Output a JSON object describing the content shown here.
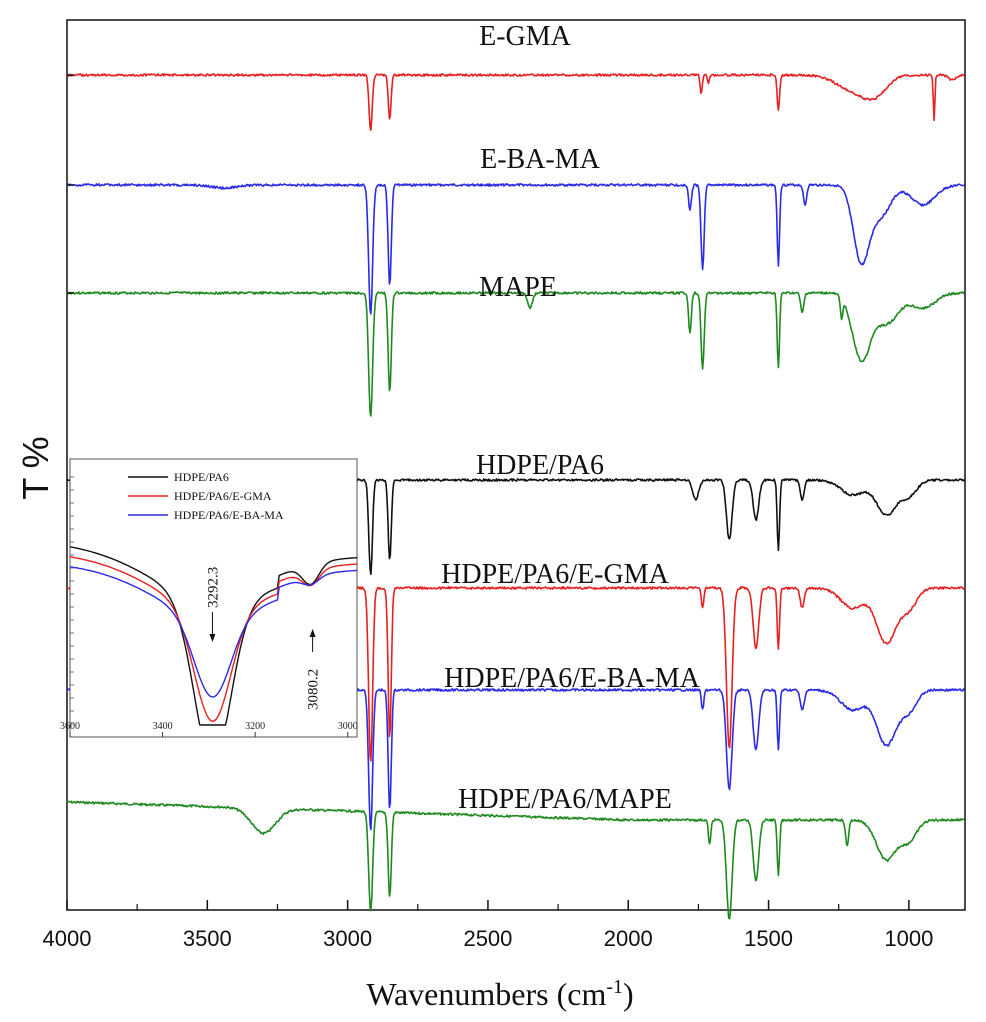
{
  "chart_data": [
    {
      "type": "line",
      "xlabel": "Wavenumbers (cm",
      "xlabel_sup": "-1",
      "xlabel_close": ")",
      "ylabel": "T %",
      "xlim": [
        4000,
        800
      ],
      "x_reversed": true,
      "xticks": [
        4000,
        3500,
        3000,
        2500,
        2000,
        1500,
        1000
      ],
      "y_tick_labels_shown": false,
      "grid": false,
      "series": [
        {
          "name": "E-GMA",
          "color": "#e82020",
          "peaks": [
            2918,
            2850,
            1740,
            1715,
            1465,
            1160,
            1100,
            910,
            845
          ]
        },
        {
          "name": "E-BA-MA",
          "color": "#2a2ae8",
          "peaks": [
            2918,
            2850,
            1780,
            1735,
            1465,
            1170,
            950
          ]
        },
        {
          "name": "MAPE",
          "color": "#1e8a1e",
          "peaks": [
            2918,
            2850,
            2350,
            1780,
            1735,
            1465,
            1380,
            1240,
            1170
          ]
        },
        {
          "name": "HDPE/PA6",
          "color": "#111111",
          "peaks": [
            2918,
            2850,
            1640,
            1545,
            1465,
            1200,
            1080
          ]
        },
        {
          "name": "HDPE/PA6/E-GMA",
          "color": "#e82020",
          "peaks": [
            2918,
            2850,
            1735,
            1640,
            1545,
            1465,
            1200,
            1080
          ]
        },
        {
          "name": "HDPE/PA6/E-BA-MA",
          "color": "#2a2ae8",
          "peaks": [
            2918,
            2850,
            1735,
            1640,
            1545,
            1465,
            1200,
            1080
          ]
        },
        {
          "name": "HDPE/PA6/MAPE",
          "color": "#1e8a1e",
          "peaks": [
            3300,
            2918,
            2850,
            1710,
            1640,
            1545,
            1465,
            1220,
            1080
          ]
        }
      ]
    },
    {
      "type": "line",
      "inset": true,
      "xlim": [
        3600,
        2980
      ],
      "x_reversed": true,
      "xticks": [
        3600,
        3400,
        3200,
        3000
      ],
      "legend_position": "top-left",
      "series": [
        {
          "name": "HDPE/PA6",
          "color": "#111111"
        },
        {
          "name": "HDPE/PA6/E-GMA",
          "color": "#e82020"
        },
        {
          "name": "HDPE/PA6/E-BA-MA",
          "color": "#2a2ae8"
        }
      ],
      "annotations": [
        {
          "text": "3292.3",
          "x": 3292.3
        },
        {
          "text": "3080.2",
          "x": 3080.2
        }
      ]
    }
  ]
}
